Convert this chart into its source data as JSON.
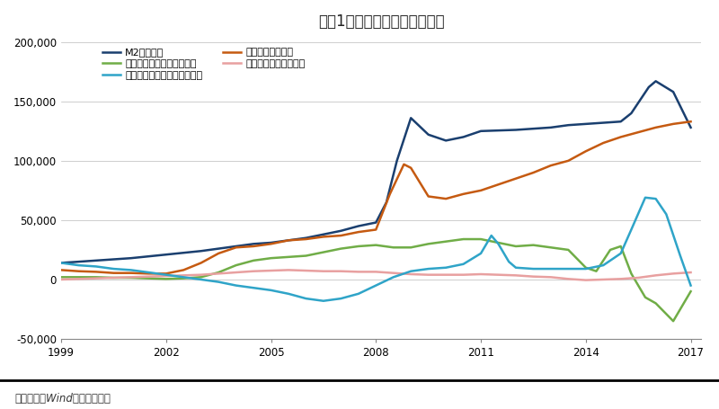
{
  "title": "图表1：中国货币发行历史回顾",
  "source": "资料来源：Wind，恒大研究院",
  "xlim": [
    1999,
    2017.3
  ],
  "ylim": [
    -50000,
    205000
  ],
  "yticks": [
    -50000,
    0,
    50000,
    100000,
    150000,
    200000
  ],
  "xticks": [
    1999,
    2002,
    2005,
    2008,
    2011,
    2014,
    2017
  ],
  "series": {
    "M2": {
      "label": "M2（亿元）",
      "color": "#1a3f6f",
      "data_x": [
        1999.0,
        1999.5,
        2000.0,
        2000.5,
        2001.0,
        2001.5,
        2002.0,
        2002.5,
        2003.0,
        2003.5,
        2004.0,
        2004.5,
        2005.0,
        2005.5,
        2006.0,
        2006.5,
        2007.0,
        2007.5,
        2008.0,
        2008.3,
        2008.6,
        2009.0,
        2009.5,
        2010.0,
        2010.5,
        2011.0,
        2011.5,
        2012.0,
        2012.5,
        2013.0,
        2013.5,
        2014.0,
        2014.5,
        2015.0,
        2015.3,
        2015.8,
        2016.0,
        2016.5,
        2017.0
      ],
      "data_y": [
        14000,
        15000,
        16000,
        17000,
        18000,
        19500,
        21000,
        22500,
        24000,
        26000,
        28000,
        30000,
        31000,
        33000,
        35000,
        38000,
        41000,
        45000,
        48000,
        65000,
        100000,
        136000,
        122000,
        117000,
        120000,
        125000,
        125500,
        126000,
        127000,
        128000,
        130000,
        131000,
        132000,
        133000,
        140000,
        162000,
        167000,
        158000,
        128000
      ]
    },
    "loans": {
      "label": "各项贷款（亿元）",
      "color": "#c55a11",
      "data_x": [
        1999.0,
        1999.5,
        2000.0,
        2000.5,
        2001.0,
        2001.5,
        2002.0,
        2002.5,
        2003.0,
        2003.5,
        2004.0,
        2004.5,
        2005.0,
        2005.5,
        2006.0,
        2006.5,
        2007.0,
        2007.5,
        2008.0,
        2008.4,
        2008.8,
        2009.0,
        2009.5,
        2010.0,
        2010.5,
        2011.0,
        2011.5,
        2012.0,
        2012.5,
        2013.0,
        2013.5,
        2014.0,
        2014.5,
        2015.0,
        2015.5,
        2016.0,
        2016.5,
        2017.0
      ],
      "data_y": [
        8000,
        7000,
        6500,
        5500,
        5500,
        5000,
        5000,
        8000,
        14000,
        22000,
        27000,
        28000,
        30000,
        33000,
        34000,
        36000,
        37000,
        40000,
        42000,
        72000,
        97000,
        94000,
        70000,
        68000,
        72000,
        75000,
        80000,
        85000,
        90000,
        96000,
        100000,
        108000,
        115000,
        120000,
        124000,
        128000,
        131000,
        133000
      ]
    },
    "forex": {
      "label": "中央银行外汇占款（亿元）",
      "color": "#70ad47",
      "data_x": [
        1999.0,
        1999.5,
        2000.0,
        2000.5,
        2001.0,
        2001.5,
        2002.0,
        2002.5,
        2003.0,
        2003.5,
        2004.0,
        2004.5,
        2005.0,
        2005.5,
        2006.0,
        2006.5,
        2007.0,
        2007.5,
        2008.0,
        2008.5,
        2009.0,
        2009.5,
        2010.0,
        2010.5,
        2011.0,
        2011.5,
        2012.0,
        2012.5,
        2013.0,
        2013.5,
        2014.0,
        2014.3,
        2014.7,
        2015.0,
        2015.3,
        2015.7,
        2016.0,
        2016.5,
        2017.0
      ],
      "data_y": [
        2000,
        2000,
        2000,
        1500,
        1500,
        1000,
        500,
        1000,
        2000,
        6000,
        12000,
        16000,
        18000,
        19000,
        20000,
        23000,
        26000,
        28000,
        29000,
        27000,
        27000,
        30000,
        32000,
        34000,
        34000,
        31000,
        28000,
        29000,
        27000,
        25000,
        10000,
        7000,
        25000,
        28000,
        5000,
        -15000,
        -20000,
        -35000,
        -10000
      ]
    },
    "fiscal": {
      "label": "财政存款余额（亿元）",
      "color": "#e8a0a0",
      "data_x": [
        1999.0,
        1999.5,
        2000.0,
        2000.5,
        2001.0,
        2001.5,
        2002.0,
        2002.5,
        2003.0,
        2003.5,
        2004.0,
        2004.5,
        2005.0,
        2005.5,
        2006.0,
        2006.5,
        2007.0,
        2007.5,
        2008.0,
        2008.5,
        2009.0,
        2009.5,
        2010.0,
        2010.5,
        2011.0,
        2011.5,
        2012.0,
        2012.5,
        2013.0,
        2013.5,
        2014.0,
        2014.5,
        2015.0,
        2015.5,
        2016.0,
        2016.5,
        2017.0
      ],
      "data_y": [
        0,
        500,
        1000,
        1500,
        2000,
        2500,
        3000,
        3500,
        4000,
        5000,
        6000,
        7000,
        7500,
        8000,
        7500,
        7000,
        7000,
        6500,
        6500,
        5500,
        4500,
        4000,
        4000,
        4000,
        4500,
        4000,
        3500,
        2500,
        2000,
        500,
        -500,
        0,
        500,
        1500,
        3500,
        5000,
        6000
      ]
    },
    "other": {
      "label": "其他（包括同业在内，亿元）",
      "color": "#2fa4c8",
      "data_x": [
        1999.0,
        1999.5,
        2000.0,
        2000.5,
        2001.0,
        2001.5,
        2002.0,
        2002.5,
        2003.0,
        2003.5,
        2004.0,
        2004.5,
        2005.0,
        2005.5,
        2006.0,
        2006.5,
        2007.0,
        2007.5,
        2008.0,
        2008.5,
        2009.0,
        2009.5,
        2010.0,
        2010.5,
        2011.0,
        2011.3,
        2011.5,
        2011.8,
        2012.0,
        2012.5,
        2013.0,
        2013.5,
        2014.0,
        2014.5,
        2015.0,
        2015.3,
        2015.7,
        2016.0,
        2016.3,
        2016.7,
        2017.0
      ],
      "data_y": [
        14000,
        12000,
        11000,
        9000,
        8000,
        6000,
        4000,
        2000,
        0,
        -2000,
        -5000,
        -7000,
        -9000,
        -12000,
        -16000,
        -18000,
        -16000,
        -12000,
        -5000,
        2000,
        7000,
        9000,
        10000,
        13000,
        22000,
        37000,
        30000,
        15000,
        10000,
        9000,
        9000,
        9000,
        9000,
        12000,
        22000,
        42000,
        69000,
        68000,
        55000,
        20000,
        -5000
      ]
    }
  },
  "background_color": "#ffffff",
  "plot_bg_color": "#ffffff",
  "grid_color": "#bbbbbb",
  "legend_order": [
    0,
    2,
    4,
    1,
    3
  ]
}
